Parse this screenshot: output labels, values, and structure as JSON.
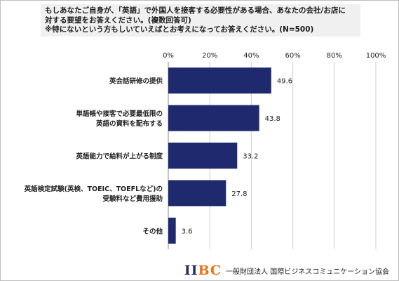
{
  "question": {
    "line1": "もしあなたご自身が、「英語」で外国人を接客する必要性がある場合、あなたの会社/お店に",
    "line2": "対する要望をお答えください。(複数回答可)",
    "line3": "※特にないという方もしいていえばとお考えになってお答えください。(N=500)"
  },
  "chart_data": {
    "type": "bar",
    "orientation": "horizontal",
    "categories": [
      [
        "英会話研修の提供"
      ],
      [
        "単語帳や接客で必要最低限の",
        "英語の資料を配布する"
      ],
      [
        "英語能力で給料が上がる制度"
      ],
      [
        "英語検定試験(英検、TOEIC、TOEFLなど)の",
        "受験料など費用援助"
      ],
      [
        "その他"
      ]
    ],
    "values": [
      49.6,
      43.8,
      33.2,
      27.8,
      3.6
    ],
    "value_labels": [
      "49.6",
      "43.8",
      "33.2",
      "27.8",
      "3.6"
    ],
    "xlim": [
      0,
      100
    ],
    "x_ticks": [
      "0%",
      "20%",
      "40%",
      "60%",
      "80%",
      "100%"
    ],
    "bar_color": "#1f2a6e",
    "grid": true
  },
  "footer": {
    "logo_part1": "II",
    "logo_part2": "BC",
    "organization": "一般財団法人 国際ビジネスコミュニケーション協会"
  }
}
